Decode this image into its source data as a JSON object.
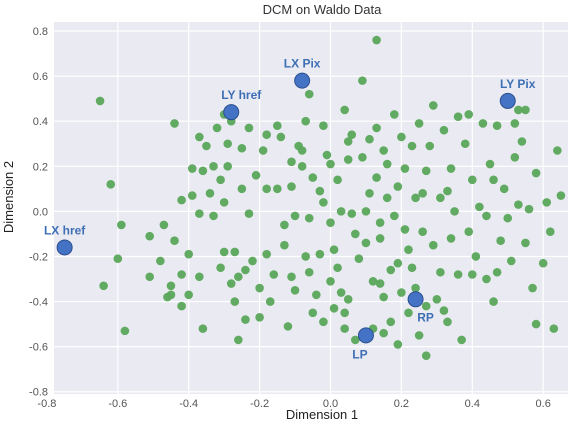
{
  "chart_data": {
    "type": "scatter",
    "title": "DCM on Waldo Data",
    "xlabel": "Dimension 1",
    "ylabel": "Dimension 2",
    "xlim": [
      -0.78,
      0.67
    ],
    "ylim": [
      -0.81,
      0.84
    ],
    "xticks": [
      "-0.8",
      "-0.6",
      "-0.4",
      "-0.2",
      "0.0",
      "0.2",
      "0.4",
      "0.6"
    ],
    "xtick_values": [
      -0.8,
      -0.6,
      -0.4,
      -0.2,
      0.0,
      0.2,
      0.4,
      0.6
    ],
    "yticks": [
      "0.8",
      "0.6",
      "0.4",
      "0.2",
      "0.0",
      "-0.2",
      "-0.4",
      "-0.6",
      "-0.8"
    ],
    "ytick_values": [
      0.8,
      0.6,
      0.4,
      0.2,
      0.0,
      -0.2,
      -0.4,
      -0.6,
      -0.8
    ],
    "grid": true,
    "background_color": "#eaeaf2",
    "colors": {
      "points": "#5aa65a",
      "highlight": "#4472c4",
      "highlight_edge": "#2b4f8e",
      "label": "#3d6fb5"
    },
    "series": [
      {
        "points": [
          [
            -0.65,
            0.49
          ],
          [
            -0.62,
            0.12
          ],
          [
            -0.64,
            -0.33
          ],
          [
            -0.59,
            -0.06
          ],
          [
            -0.6,
            -0.21
          ],
          [
            -0.58,
            -0.53
          ],
          [
            -0.51,
            -0.11
          ],
          [
            -0.51,
            -0.29
          ],
          [
            -0.47,
            -0.06
          ],
          [
            -0.46,
            -0.38
          ],
          [
            -0.45,
            -0.33
          ],
          [
            -0.45,
            -0.37
          ],
          [
            -0.44,
            -0.13
          ],
          [
            -0.44,
            0.39
          ],
          [
            -0.42,
            -0.28
          ],
          [
            -0.42,
            -0.42
          ],
          [
            -0.42,
            0.05
          ],
          [
            -0.4,
            -0.37
          ],
          [
            -0.4,
            -0.19
          ],
          [
            -0.39,
            0.19
          ],
          [
            -0.39,
            0.07
          ],
          [
            -0.37,
            -0.01
          ],
          [
            -0.37,
            -0.29
          ],
          [
            -0.36,
            -0.52
          ],
          [
            -0.37,
            0.33
          ],
          [
            -0.36,
            0.18
          ],
          [
            -0.35,
            0.29
          ],
          [
            -0.34,
            0.08
          ],
          [
            -0.33,
            0.2
          ],
          [
            -0.32,
            0.37
          ],
          [
            -0.31,
            0.14
          ],
          [
            -0.3,
            -0.18
          ],
          [
            -0.3,
            0.43
          ],
          [
            -0.31,
            -0.25
          ],
          [
            -0.3,
            0.04
          ],
          [
            -0.29,
            0.3
          ],
          [
            -0.29,
            0.2
          ],
          [
            -0.28,
            -0.32
          ],
          [
            -0.28,
            0.4
          ],
          [
            -0.27,
            -0.4
          ],
          [
            -0.27,
            -0.18
          ],
          [
            -0.26,
            -0.29
          ],
          [
            -0.25,
            0.28
          ],
          [
            -0.25,
            0.1
          ],
          [
            -0.24,
            -0.26
          ],
          [
            -0.23,
            0.37
          ],
          [
            -0.23,
            -0.01
          ],
          [
            -0.22,
            -0.22
          ],
          [
            -0.21,
            0.16
          ],
          [
            -0.2,
            -0.34
          ],
          [
            -0.2,
            -0.47
          ],
          [
            -0.19,
            0.27
          ],
          [
            -0.18,
            0.1
          ],
          [
            -0.18,
            -0.19
          ],
          [
            -0.18,
            0.34
          ],
          [
            -0.17,
            -0.4
          ],
          [
            -0.16,
            -0.28
          ],
          [
            -0.15,
            0.38
          ],
          [
            -0.14,
            0.33
          ],
          [
            -0.13,
            -0.06
          ],
          [
            -0.13,
            -0.15
          ],
          [
            -0.12,
            -0.51
          ],
          [
            -0.11,
            0.22
          ],
          [
            -0.11,
            0.11
          ],
          [
            -0.1,
            -0.35
          ],
          [
            -0.1,
            -0.02
          ],
          [
            -0.09,
            0.29
          ],
          [
            -0.08,
            0.27
          ],
          [
            -0.07,
            -0.2
          ],
          [
            -0.07,
            0.4
          ],
          [
            -0.06,
            -0.27
          ],
          [
            -0.06,
            -0.03
          ],
          [
            -0.05,
            0.15
          ],
          [
            -0.05,
            -0.45
          ],
          [
            -0.04,
            -0.37
          ],
          [
            -0.03,
            0.09
          ],
          [
            -0.03,
            -0.19
          ],
          [
            -0.02,
            0.38
          ],
          [
            -0.01,
            0.25
          ],
          [
            0.0,
            -0.31
          ],
          [
            0.0,
            0.21
          ],
          [
            0.0,
            -0.05
          ],
          [
            0.01,
            -0.17
          ],
          [
            0.02,
            0.14
          ],
          [
            0.02,
            -0.25
          ],
          [
            0.03,
            0.0
          ],
          [
            0.03,
            -0.36
          ],
          [
            0.04,
            0.45
          ],
          [
            0.04,
            -0.45
          ],
          [
            0.04,
            -0.52
          ],
          [
            0.05,
            0.23
          ],
          [
            0.05,
            -0.39
          ],
          [
            0.06,
            -0.01
          ],
          [
            0.06,
            0.34
          ],
          [
            0.07,
            -0.1
          ],
          [
            0.07,
            -0.57
          ],
          [
            0.08,
            -0.21
          ],
          [
            0.09,
            0.58
          ],
          [
            0.1,
            -0.14
          ],
          [
            0.11,
            0.32
          ],
          [
            0.11,
            0.08
          ],
          [
            0.12,
            -0.31
          ],
          [
            0.12,
            -0.52
          ],
          [
            0.13,
            0.15
          ],
          [
            0.13,
            0.37
          ],
          [
            0.13,
            0.76
          ],
          [
            0.14,
            -0.05
          ],
          [
            0.14,
            -0.12
          ],
          [
            0.15,
            0.27
          ],
          [
            0.15,
            -0.38
          ],
          [
            0.15,
            -0.54
          ],
          [
            0.16,
            0.21
          ],
          [
            0.16,
            0.06
          ],
          [
            0.17,
            -0.26
          ],
          [
            0.17,
            -0.49
          ],
          [
            0.18,
            0.43
          ],
          [
            0.19,
            -0.23
          ],
          [
            0.19,
            -0.59
          ],
          [
            0.19,
            0.11
          ],
          [
            0.2,
            0.33
          ],
          [
            0.2,
            -0.36
          ],
          [
            0.21,
            0.19
          ],
          [
            0.21,
            -0.08
          ],
          [
            0.22,
            -0.45
          ],
          [
            0.22,
            -0.17
          ],
          [
            0.23,
            0.29
          ],
          [
            0.23,
            -0.25
          ],
          [
            0.24,
            0.06
          ],
          [
            0.24,
            -0.34
          ],
          [
            0.25,
            0.39
          ],
          [
            0.25,
            -0.55
          ],
          [
            0.26,
            -0.09
          ],
          [
            0.27,
            0.18
          ],
          [
            0.27,
            -0.64
          ],
          [
            0.28,
            0.29
          ],
          [
            0.29,
            0.47
          ],
          [
            0.29,
            -0.15
          ],
          [
            0.3,
            -0.39
          ],
          [
            0.31,
            0.06
          ],
          [
            0.31,
            -0.27
          ],
          [
            0.32,
            0.36
          ],
          [
            0.33,
            -0.49
          ],
          [
            0.34,
            0.19
          ],
          [
            0.34,
            -0.12
          ],
          [
            0.35,
            0.0
          ],
          [
            0.36,
            -0.28
          ],
          [
            0.36,
            0.42
          ],
          [
            0.37,
            -0.57
          ],
          [
            0.38,
            0.3
          ],
          [
            0.39,
            -0.09
          ],
          [
            0.4,
            -0.28
          ],
          [
            0.4,
            0.14
          ],
          [
            0.41,
            -0.2
          ],
          [
            0.42,
            0.02
          ],
          [
            0.43,
            0.39
          ],
          [
            0.44,
            -0.02
          ],
          [
            0.45,
            0.21
          ],
          [
            0.46,
            -0.4
          ],
          [
            0.46,
            0.14
          ],
          [
            0.47,
            0.38
          ],
          [
            0.47,
            -0.27
          ],
          [
            0.48,
            -0.13
          ],
          [
            0.49,
            0.1
          ],
          [
            0.5,
            -0.03
          ],
          [
            0.51,
            -0.22
          ],
          [
            0.52,
            0.24
          ],
          [
            0.53,
            0.45
          ],
          [
            0.54,
            0.31
          ],
          [
            0.55,
            -0.14
          ],
          [
            0.56,
            0.01
          ],
          [
            0.57,
            -0.34
          ],
          [
            0.58,
            -0.5
          ],
          [
            0.58,
            0.17
          ],
          [
            0.6,
            -0.23
          ],
          [
            0.61,
            0.04
          ],
          [
            0.62,
            -0.09
          ],
          [
            0.63,
            -0.52
          ],
          [
            0.64,
            0.27
          ],
          [
            0.65,
            0.07
          ],
          [
            0.53,
            0.03
          ],
          [
            0.26,
            0.08
          ],
          [
            -0.02,
            0.04
          ],
          [
            -0.08,
            0.2
          ],
          [
            -0.15,
            0.1
          ],
          [
            -0.33,
            -0.02
          ],
          [
            -0.48,
            -0.22
          ],
          [
            0.01,
            -0.43
          ],
          [
            0.18,
            -0.02
          ],
          [
            0.33,
            0.09
          ],
          [
            0.44,
            -0.3
          ],
          [
            0.1,
            0.0
          ],
          [
            -0.24,
            -0.48
          ],
          [
            0.09,
            0.24
          ],
          [
            -0.06,
            0.52
          ],
          [
            0.05,
            0.31
          ],
          [
            0.39,
            0.43
          ],
          [
            0.52,
            0.39
          ],
          [
            0.55,
            0.45
          ],
          [
            -0.11,
            -0.29
          ],
          [
            0.27,
            -0.42
          ],
          [
            0.32,
            -0.44
          ],
          [
            -0.26,
            -0.57
          ],
          [
            -0.02,
            -0.49
          ],
          [
            0.14,
            -0.32
          ]
        ]
      },
      {
        "points": [
          {
            "x": -0.75,
            "y": -0.16,
            "label": "LX href",
            "label_pos": "above"
          },
          {
            "x": -0.28,
            "y": 0.44,
            "label": "LY href",
            "label_pos": "above-right"
          },
          {
            "x": -0.08,
            "y": 0.58,
            "label": "LX Pix",
            "label_pos": "above"
          },
          {
            "x": 0.5,
            "y": 0.49,
            "label": "LY Pix",
            "label_pos": "above-right"
          },
          {
            "x": 0.24,
            "y": -0.39,
            "label": "RP",
            "label_pos": "below-right"
          },
          {
            "x": 0.1,
            "y": -0.55,
            "label": "LP",
            "label_pos": "below-left"
          }
        ]
      }
    ]
  }
}
